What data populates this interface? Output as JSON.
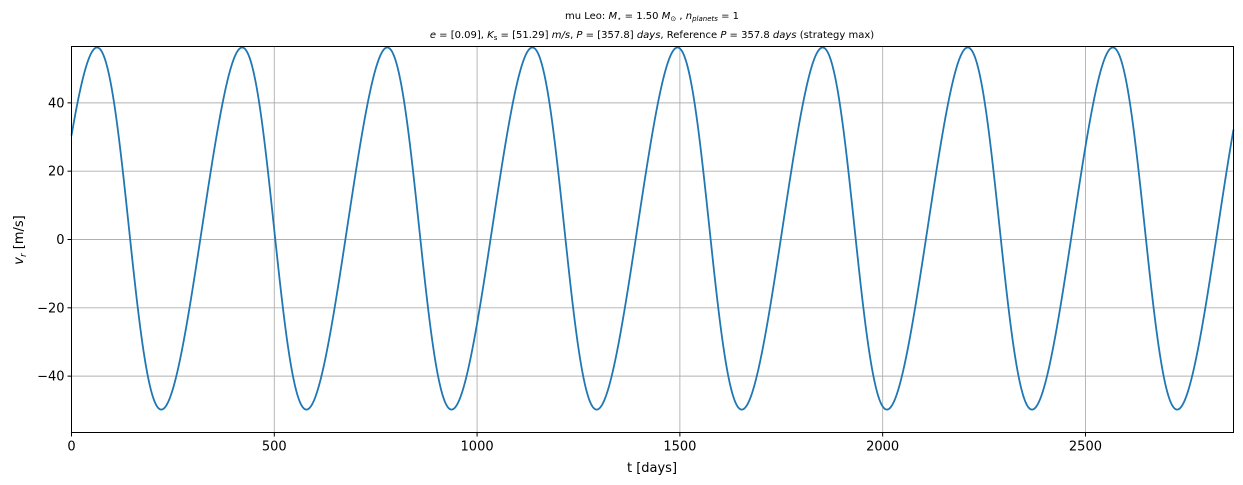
{
  "chart_data": {
    "type": "line",
    "title_line1": {
      "prefix": "mu Leo: ",
      "mass_symbol": "M",
      "mass_sub": "⋆",
      "mass_eq": " = 1.50 ",
      "mass_unit": "M",
      "mass_unit_sub": "⊙",
      "sep": " , ",
      "np_symbol": "n",
      "np_sub": "planets",
      "np_eq": " = 1"
    },
    "title_line2": {
      "e_symbol": "e",
      "e_val": " = [0.09], ",
      "k_symbol": "K",
      "k_sub": "s",
      "k_val": " = [51.29] ",
      "k_unit": "m/s",
      "p_sep": ", ",
      "p_symbol": "P",
      "p_val": " = [357.8] ",
      "p_unit": "days",
      "ref_text": ", Reference ",
      "ref_symbol": "P",
      "ref_val": " = 357.8 ",
      "ref_unit": "days",
      "strategy": " (strategy max)"
    },
    "xlabel": "t [days]",
    "ylabel_symbol": "v",
    "ylabel_sub": "r",
    "ylabel_unit": " [m/s]",
    "xlim": [
      0,
      2865
    ],
    "ylim": [
      -56.5,
      56.5
    ],
    "xticks": [
      0,
      500,
      1000,
      1500,
      2000,
      2500
    ],
    "yticks": [
      -40,
      -20,
      0,
      20,
      40
    ],
    "ytick_labels": [
      "−40",
      "−20",
      "0",
      "20",
      "40"
    ],
    "grid": true,
    "series": [
      {
        "color": "#1f77b4",
        "model": {
          "period_days": 357.8,
          "eccentricity": 0.09,
          "semi_amplitude_m_s": 51.29,
          "vmax_m_s": 56.0,
          "vmin_m_s": -50.0,
          "first_peak_t_days": 63,
          "first_trough_t_days": 218,
          "v_at_t0_m_s": 27
        }
      }
    ]
  }
}
